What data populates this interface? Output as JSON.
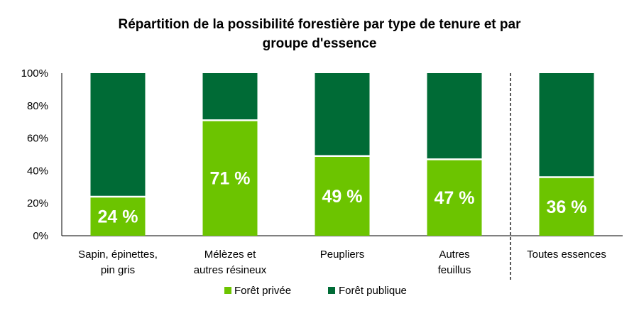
{
  "chart_data": {
    "type": "bar",
    "stacked": true,
    "normalized": true,
    "title_lines": [
      "Répartition de la possibilité forestière par type de tenure et par",
      "groupe d'essence"
    ],
    "categories": [
      [
        "Sapin, épinettes,",
        "pin gris"
      ],
      [
        "Mélèzes et",
        "autres résineux"
      ],
      [
        "Peupliers"
      ],
      [
        "Autres",
        "feuillus"
      ],
      [
        "Toutes essences"
      ]
    ],
    "series": [
      {
        "name": "Forêt privée",
        "color": "#6cc400",
        "values": [
          24,
          71,
          49,
          47,
          36
        ]
      },
      {
        "name": "Forêt publique",
        "color": "#006b36",
        "values": [
          76,
          29,
          51,
          53,
          64
        ]
      }
    ],
    "data_labels": [
      "24 %",
      "71 %",
      "49 %",
      "47 %",
      "36 %"
    ],
    "y_ticks": [
      "0%",
      "20%",
      "40%",
      "60%",
      "80%",
      "100%"
    ],
    "ylim": [
      0,
      100
    ],
    "separator_before_category": 4,
    "grid": false,
    "legend_position": "bottom"
  }
}
